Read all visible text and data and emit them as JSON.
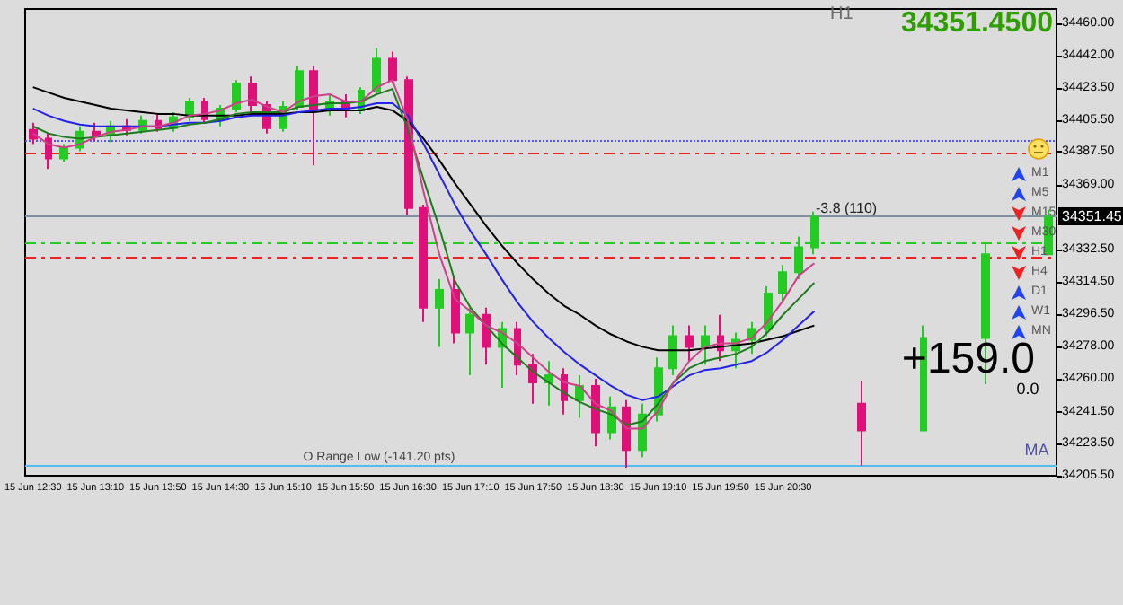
{
  "chart_data": {
    "type": "candlestick",
    "grid": false,
    "categories": [
      "15 Jun 12:30",
      null,
      null,
      null,
      "15 Jun 13:10",
      null,
      null,
      null,
      "15 Jun 13:50",
      null,
      null,
      null,
      "15 Jun 14:30",
      null,
      null,
      null,
      "15 Jun 15:10",
      null,
      null,
      null,
      "15 Jun 15:50",
      null,
      null,
      null,
      "15 Jun 16:30",
      null,
      null,
      null,
      "15 Jun 17:10",
      null,
      null,
      null,
      "15 Jun 17:50",
      null,
      null,
      null,
      "15 Jun 18:30",
      null,
      null,
      null,
      "15 Jun 19:10",
      null,
      null,
      null,
      "15 Jun 19:50",
      null,
      null,
      null,
      "15 Jun 20:30",
      null,
      null,
      null,
      null,
      null,
      null,
      null,
      null,
      null,
      null,
      null,
      null,
      null,
      null,
      null,
      null,
      null
    ],
    "ohlc": [
      [
        34400,
        34404,
        34392,
        34395
      ],
      [
        34395,
        34398,
        34378,
        34384
      ],
      [
        34384,
        34392,
        34382,
        34390
      ],
      [
        34390,
        34402,
        34388,
        34399
      ],
      [
        34399,
        34404,
        34394,
        34397
      ],
      [
        34397,
        34405,
        34393,
        34402
      ],
      [
        34402,
        34406,
        34397,
        34400
      ],
      [
        34400,
        34408,
        34398,
        34405
      ],
      [
        34405,
        34409,
        34399,
        34401
      ],
      [
        34401,
        34410,
        34399,
        34407
      ],
      [
        34407,
        34418,
        34405,
        34416
      ],
      [
        34416,
        34418,
        34404,
        34406
      ],
      [
        34406,
        34414,
        34402,
        34412
      ],
      [
        34412,
        34428,
        34410,
        34426
      ],
      [
        34426,
        34430,
        34410,
        34414
      ],
      [
        34414,
        34416,
        34398,
        34401
      ],
      [
        34401,
        34416,
        34399,
        34413
      ],
      [
        34413,
        34436,
        34411,
        34433
      ],
      [
        34433,
        34436,
        34380,
        34412
      ],
      [
        34412,
        34420,
        34408,
        34416
      ],
      [
        34416,
        34420,
        34407,
        34411
      ],
      [
        34411,
        34424,
        34409,
        34422
      ],
      [
        34422,
        34446,
        34420,
        34440
      ],
      [
        34440,
        34444,
        34426,
        34428
      ],
      [
        34428,
        34430,
        34352,
        34356
      ],
      [
        34356,
        34358,
        34292,
        34300
      ],
      [
        34300,
        34316,
        34278,
        34310
      ],
      [
        34310,
        34318,
        34280,
        34286
      ],
      [
        34286,
        34300,
        34262,
        34296
      ],
      [
        34296,
        34300,
        34268,
        34278
      ],
      [
        34278,
        34292,
        34255,
        34288
      ],
      [
        34288,
        34292,
        34262,
        34268
      ],
      [
        34268,
        34274,
        34246,
        34258
      ],
      [
        34258,
        34270,
        34245,
        34262
      ],
      [
        34262,
        34266,
        34240,
        34248
      ],
      [
        34248,
        34262,
        34238,
        34256
      ],
      [
        34256,
        34260,
        34222,
        34230
      ],
      [
        34230,
        34250,
        34226,
        34244
      ],
      [
        34244,
        34248,
        34210,
        34220
      ],
      [
        34220,
        34246,
        34216,
        34240
      ],
      [
        34240,
        34272,
        34236,
        34266
      ],
      [
        34266,
        34290,
        34262,
        34284
      ],
      [
        34284,
        34290,
        34270,
        34278
      ],
      [
        34278,
        34290,
        34268,
        34284
      ],
      [
        34284,
        34296,
        34270,
        34276
      ],
      [
        34276,
        34286,
        34266,
        34282
      ],
      [
        34282,
        34292,
        34274,
        34288
      ],
      [
        34288,
        34312,
        34284,
        34308
      ],
      [
        34308,
        34324,
        34304,
        34320
      ],
      [
        34320,
        34340,
        34316,
        34334
      ],
      [
        34334,
        34354,
        34330,
        34351
      ],
      null,
      null,
      [
        34246,
        34259,
        34211,
        34231
      ],
      null,
      null,
      null,
      [
        34231,
        34290,
        34231,
        34283
      ],
      null,
      null,
      null,
      [
        34283,
        34336,
        34257,
        34330
      ],
      null,
      null,
      null,
      [
        34330,
        34355,
        34330,
        34351
      ]
    ],
    "series": [
      {
        "type": "line",
        "color": "#000000",
        "values": [
          34424,
          34421,
          34418,
          34416,
          34414,
          34412,
          34411,
          34410,
          34409,
          34409,
          34408,
          34408,
          34408,
          34408,
          34409,
          34409,
          34409,
          34410,
          34410,
          34411,
          34411,
          34411,
          34413,
          34411,
          34405,
          34395,
          34383,
          34370,
          34358,
          34346,
          34335,
          34325,
          34316,
          34308,
          34301,
          34296,
          34290,
          34285,
          34281,
          34278,
          34276,
          34276,
          34276,
          34277,
          34278,
          34279,
          34280,
          34282,
          34284,
          34287,
          34290,
          null,
          null,
          null,
          null,
          null,
          null,
          null,
          null,
          null,
          null,
          null,
          null,
          null,
          null,
          null
        ]
      },
      {
        "type": "line",
        "color": "#2222ee",
        "values": [
          34412,
          34408,
          34405,
          34403,
          34402,
          34402,
          34402,
          34402,
          34402,
          34403,
          34404,
          34404,
          34405,
          34407,
          34408,
          34408,
          34408,
          34410,
          34411,
          34412,
          34412,
          34413,
          34415,
          34415,
          34408,
          34392,
          34375,
          34358,
          34343,
          34330,
          34316,
          34303,
          34292,
          34283,
          34275,
          34268,
          34262,
          34256,
          34251,
          34248,
          34250,
          34256,
          34262,
          34265,
          34266,
          34268,
          34270,
          34275,
          34282,
          34290,
          34298,
          null,
          null,
          null,
          null,
          null,
          null,
          null,
          null,
          null,
          null,
          null,
          null,
          null,
          null,
          null
        ]
      },
      {
        "type": "line",
        "color": "#1e7a1e",
        "values": [
          34402,
          34398,
          34396,
          34395,
          34396,
          34397,
          34398,
          34399,
          34400,
          34401,
          34403,
          34404,
          34406,
          34409,
          34410,
          34410,
          34410,
          34413,
          34414,
          34415,
          34415,
          34416,
          34420,
          34423,
          34400,
          34372,
          34345,
          34315,
          34300,
          34290,
          34280,
          34272,
          34264,
          34258,
          34252,
          34247,
          34243,
          34240,
          34234,
          34236,
          34246,
          34258,
          34266,
          34270,
          34272,
          34274,
          34278,
          34286,
          34296,
          34305,
          34314,
          null,
          null,
          null,
          null,
          null,
          null,
          null,
          null,
          null,
          null,
          null,
          null,
          null,
          null,
          null
        ]
      },
      {
        "type": "line",
        "color": "#d0408a",
        "values": [
          34398,
          34392,
          34390,
          34392,
          34396,
          34399,
          34400,
          34402,
          34402,
          34404,
          34408,
          34409,
          34411,
          34415,
          34417,
          34413,
          34410,
          34416,
          34419,
          34420,
          34416,
          34416,
          34424,
          34428,
          34405,
          34365,
          34330,
          34305,
          34298,
          34290,
          34286,
          34280,
          34272,
          34264,
          34258,
          34256,
          34246,
          34242,
          34232,
          34232,
          34242,
          34258,
          34270,
          34278,
          34280,
          34280,
          34283,
          34292,
          34304,
          34318,
          34325,
          null,
          null,
          null,
          null,
          null,
          null,
          null,
          null,
          null,
          null,
          null,
          null,
          null,
          null,
          null
        ]
      }
    ],
    "ylim": [
      34205.5,
      34468
    ],
    "yticks": [
      {
        "value": 34460,
        "label": "34460.00"
      },
      {
        "value": 34442,
        "label": "34442.00"
      },
      {
        "value": 34423.5,
        "label": "34423.50"
      },
      {
        "value": 34405.5,
        "label": "34405.50"
      },
      {
        "value": 34387.5,
        "label": "34387.50"
      },
      {
        "value": 34369,
        "label": "34369.00"
      },
      {
        "value": 34332.5,
        "label": "34332.50"
      },
      {
        "value": 34314.5,
        "label": "34314.50"
      },
      {
        "value": 34296.5,
        "label": "34296.50"
      },
      {
        "value": 34278,
        "label": "34278.00"
      },
      {
        "value": 34260,
        "label": "34260.00"
      },
      {
        "value": 34241.5,
        "label": "34241.50"
      },
      {
        "value": 34223.5,
        "label": "34223.50"
      },
      {
        "value": 34205.5,
        "label": "34205.50"
      }
    ],
    "ref_lines": [
      {
        "axis": "y",
        "value": 34394,
        "color": "#5555ee",
        "line_style": "dotted"
      },
      {
        "axis": "y",
        "value": 34387,
        "color": "#ee2222",
        "line_style": "dashed"
      },
      {
        "axis": "y",
        "value": 34351.45,
        "color": "#8090a0",
        "line_style": "solid",
        "label": "34351.45"
      },
      {
        "axis": "y",
        "value": 34336,
        "color": "#22cc22",
        "line_style": "dashed"
      },
      {
        "axis": "y",
        "value": 34328,
        "color": "#ee2222",
        "line_style": "dashed"
      },
      {
        "axis": "y",
        "value": 34211,
        "color": "#55bbee",
        "line_style": "solid",
        "label": "O Range Low (-141.20 pts)"
      }
    ],
    "annotations": [
      "H1",
      "34351.4500",
      "-3.8 (110)",
      "+159.0",
      "0.0",
      "MA",
      "M1",
      "M5",
      "M15",
      "M30",
      "H1",
      "H4",
      "D1",
      "W1",
      "MN"
    ]
  }
}
